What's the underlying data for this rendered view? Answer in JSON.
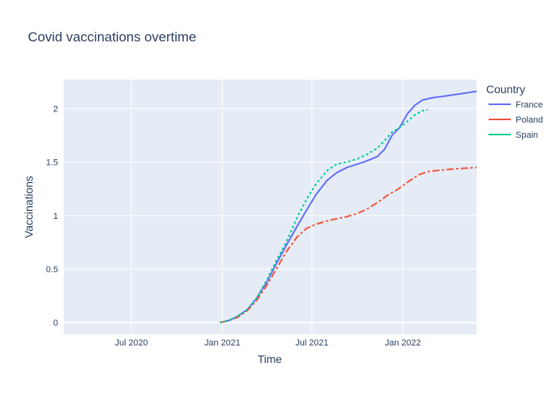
{
  "chart_data": {
    "type": "line",
    "title": "Covid vaccinations overtime",
    "xlabel": "Time",
    "ylabel": "Vaccinations",
    "x_range": [
      "2020-02-15",
      "2022-05-30"
    ],
    "ylim": [
      -0.11,
      2.27
    ],
    "x_ticks": [
      {
        "date": "2020-07-01",
        "label": "Jul 2020"
      },
      {
        "date": "2021-01-01",
        "label": "Jan 2021"
      },
      {
        "date": "2021-07-01",
        "label": "Jul 2021"
      },
      {
        "date": "2022-01-01",
        "label": "Jan 2022"
      }
    ],
    "y_ticks": [
      0,
      0.5,
      1,
      1.5,
      2
    ],
    "y_tick_labels": [
      "0",
      "0.5",
      "1",
      "1.5",
      "2"
    ],
    "grid": true,
    "legend": {
      "title": "Country",
      "position": "right"
    },
    "series": [
      {
        "name": "France",
        "color": "#636efa",
        "dash": "solid",
        "points": [
          [
            "2020-12-27",
            0.0
          ],
          [
            "2021-01-15",
            0.02
          ],
          [
            "2021-02-01",
            0.06
          ],
          [
            "2021-02-20",
            0.12
          ],
          [
            "2021-03-10",
            0.22
          ],
          [
            "2021-04-01",
            0.38
          ],
          [
            "2021-04-20",
            0.55
          ],
          [
            "2021-05-10",
            0.72
          ],
          [
            "2021-06-01",
            0.9
          ],
          [
            "2021-06-20",
            1.05
          ],
          [
            "2021-07-10",
            1.2
          ],
          [
            "2021-08-01",
            1.33
          ],
          [
            "2021-08-20",
            1.4
          ],
          [
            "2021-09-10",
            1.45
          ],
          [
            "2021-10-01",
            1.48
          ],
          [
            "2021-10-20",
            1.51
          ],
          [
            "2021-11-10",
            1.55
          ],
          [
            "2021-11-25",
            1.62
          ],
          [
            "2021-12-10",
            1.75
          ],
          [
            "2021-12-25",
            1.82
          ],
          [
            "2022-01-10",
            1.95
          ],
          [
            "2022-01-25",
            2.03
          ],
          [
            "2022-02-10",
            2.08
          ],
          [
            "2022-03-01",
            2.1
          ],
          [
            "2022-04-01",
            2.12
          ],
          [
            "2022-05-01",
            2.14
          ],
          [
            "2022-05-30",
            2.16
          ]
        ]
      },
      {
        "name": "Poland",
        "color": "#ef553b",
        "dash": "dashdot",
        "points": [
          [
            "2020-12-27",
            0.0
          ],
          [
            "2021-01-15",
            0.02
          ],
          [
            "2021-02-01",
            0.05
          ],
          [
            "2021-02-20",
            0.11
          ],
          [
            "2021-03-10",
            0.2
          ],
          [
            "2021-04-01",
            0.35
          ],
          [
            "2021-04-20",
            0.5
          ],
          [
            "2021-05-10",
            0.66
          ],
          [
            "2021-06-01",
            0.8
          ],
          [
            "2021-06-20",
            0.88
          ],
          [
            "2021-07-10",
            0.92
          ],
          [
            "2021-08-01",
            0.95
          ],
          [
            "2021-08-20",
            0.97
          ],
          [
            "2021-09-10",
            0.99
          ],
          [
            "2021-10-01",
            1.02
          ],
          [
            "2021-10-20",
            1.06
          ],
          [
            "2021-11-10",
            1.12
          ],
          [
            "2021-12-01",
            1.19
          ],
          [
            "2021-12-20",
            1.24
          ],
          [
            "2022-01-10",
            1.31
          ],
          [
            "2022-02-01",
            1.38
          ],
          [
            "2022-02-20",
            1.41
          ],
          [
            "2022-03-10",
            1.42
          ],
          [
            "2022-04-01",
            1.43
          ],
          [
            "2022-05-01",
            1.44
          ],
          [
            "2022-05-30",
            1.45
          ]
        ]
      },
      {
        "name": "Spain",
        "color": "#00cc96",
        "dash": "dot",
        "points": [
          [
            "2020-12-27",
            0.0
          ],
          [
            "2021-01-15",
            0.02
          ],
          [
            "2021-02-01",
            0.06
          ],
          [
            "2021-02-20",
            0.12
          ],
          [
            "2021-03-10",
            0.22
          ],
          [
            "2021-04-01",
            0.4
          ],
          [
            "2021-04-20",
            0.58
          ],
          [
            "2021-05-10",
            0.75
          ],
          [
            "2021-06-01",
            0.98
          ],
          [
            "2021-06-20",
            1.15
          ],
          [
            "2021-07-10",
            1.3
          ],
          [
            "2021-08-01",
            1.42
          ],
          [
            "2021-08-20",
            1.48
          ],
          [
            "2021-09-10",
            1.5
          ],
          [
            "2021-10-01",
            1.53
          ],
          [
            "2021-10-20",
            1.57
          ],
          [
            "2021-11-10",
            1.63
          ],
          [
            "2021-11-25",
            1.7
          ],
          [
            "2021-12-10",
            1.78
          ],
          [
            "2021-12-25",
            1.82
          ],
          [
            "2022-01-10",
            1.88
          ],
          [
            "2022-01-25",
            1.94
          ],
          [
            "2022-02-10",
            1.98
          ],
          [
            "2022-02-20",
            1.99
          ]
        ]
      }
    ]
  }
}
